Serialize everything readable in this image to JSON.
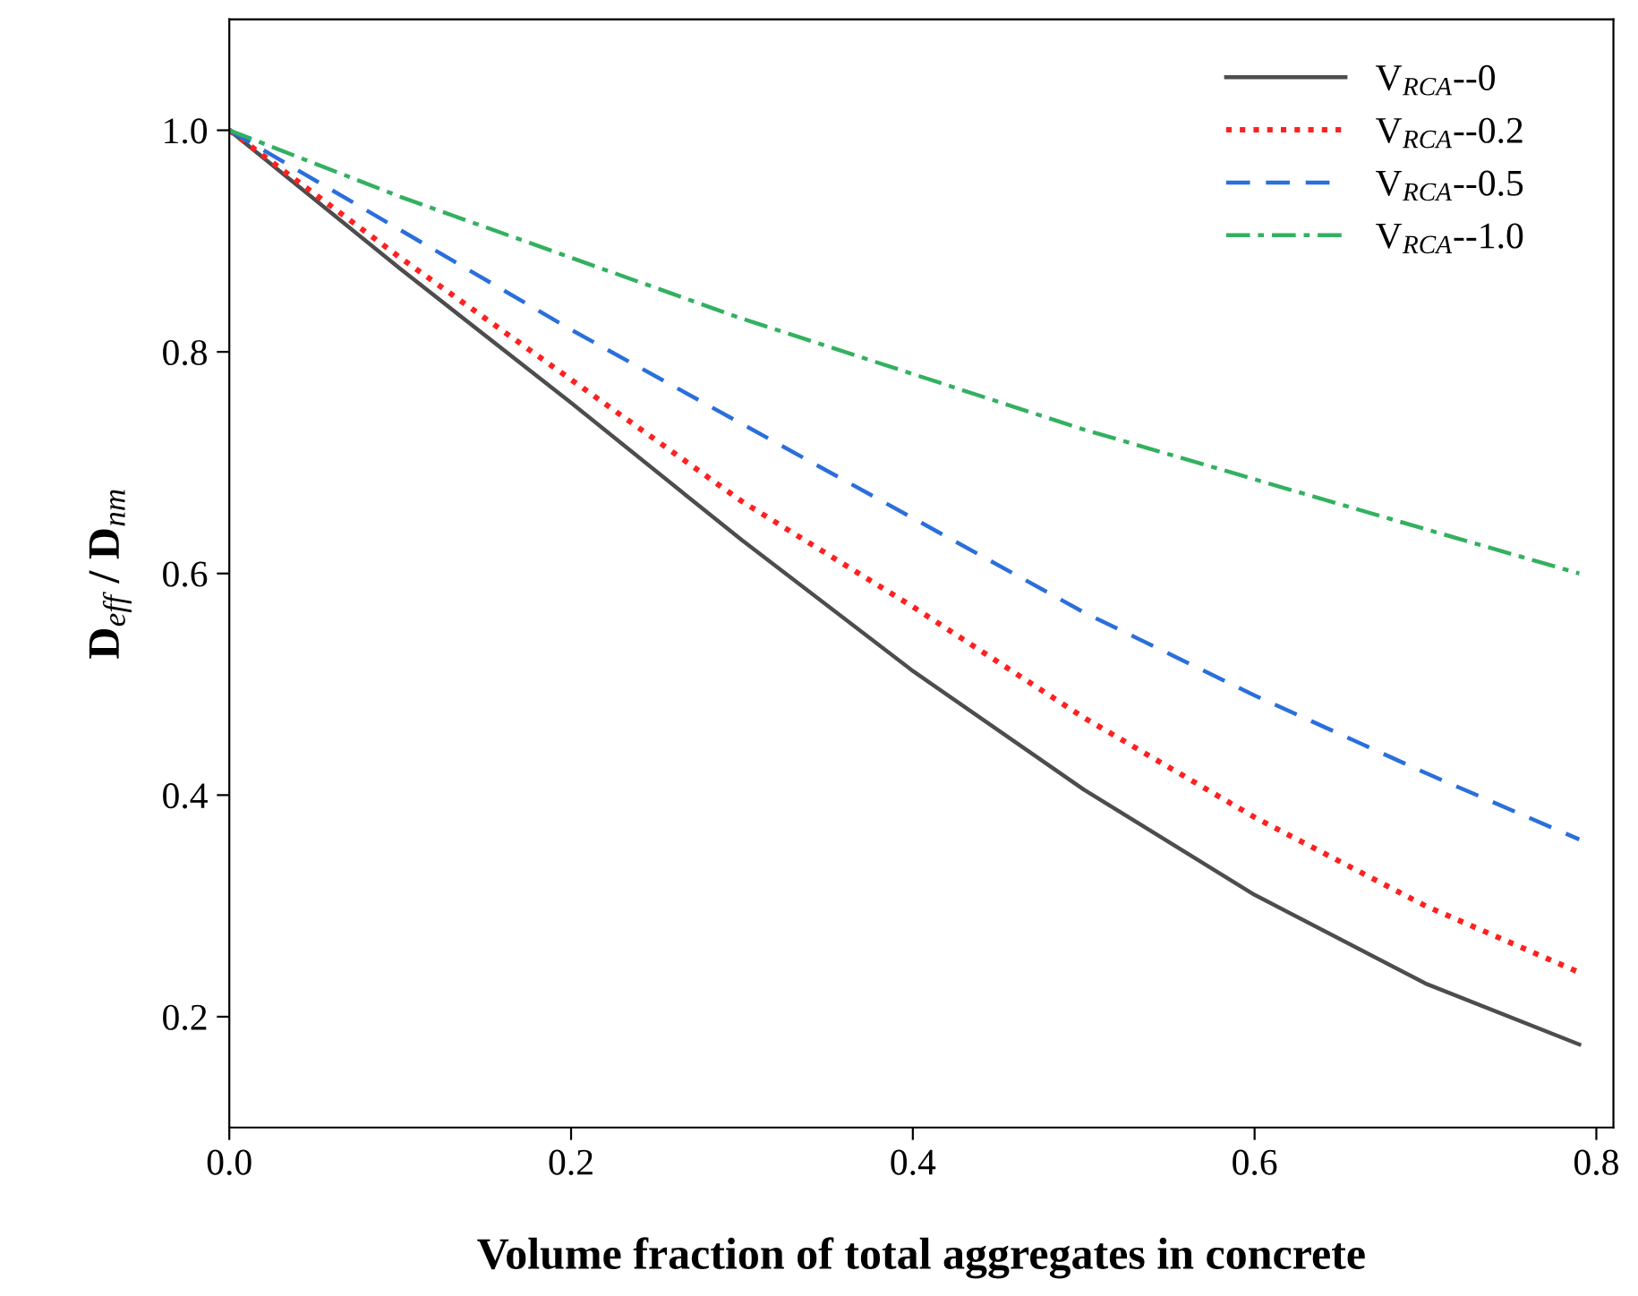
{
  "chart_data": {
    "type": "line",
    "xlabel": "Volume fraction of total aggregates in concrete",
    "ylabel": "D$_{eff}$ / D$_{nm}$",
    "x": [
      0,
      0.1,
      0.2,
      0.3,
      0.4,
      0.5,
      0.6,
      0.7,
      0.79
    ],
    "series": [
      {
        "name": "V$_{RCA}$--0",
        "color": "#4d4d4d",
        "line_style": "solid",
        "values": [
          1.0,
          0.875,
          0.754,
          0.63,
          0.512,
          0.405,
          0.31,
          0.23,
          0.175
        ]
      },
      {
        "name": "V$_{RCA}$--0.2",
        "color": "#ff2020",
        "line_style": "dotted",
        "values": [
          1.0,
          0.885,
          0.775,
          0.665,
          0.57,
          0.47,
          0.38,
          0.3,
          0.24
        ]
      },
      {
        "name": "V$_{RCA}$--0.5",
        "color": "#2a6fdb",
        "line_style": "dashed",
        "values": [
          1.0,
          0.91,
          0.82,
          0.735,
          0.65,
          0.565,
          0.49,
          0.42,
          0.36
        ]
      },
      {
        "name": "V$_{RCA}$--1.0",
        "color": "#33b060",
        "line_style": "dashdot",
        "values": [
          1.0,
          0.94,
          0.885,
          0.83,
          0.78,
          0.73,
          0.685,
          0.64,
          0.6
        ]
      }
    ],
    "xlim": [
      0,
      0.81
    ],
    "ylim": [
      0.1,
      1.1
    ],
    "xticks": [
      {
        "value": 0,
        "label": "0.0"
      },
      0.2,
      0.4,
      0.6,
      0.8
    ],
    "yticks": [
      0.2,
      0.4,
      0.6,
      0.8,
      {
        "value": 1.0,
        "label": "1.0"
      }
    ],
    "grid": false,
    "legend": "top right",
    "marker": "none"
  }
}
